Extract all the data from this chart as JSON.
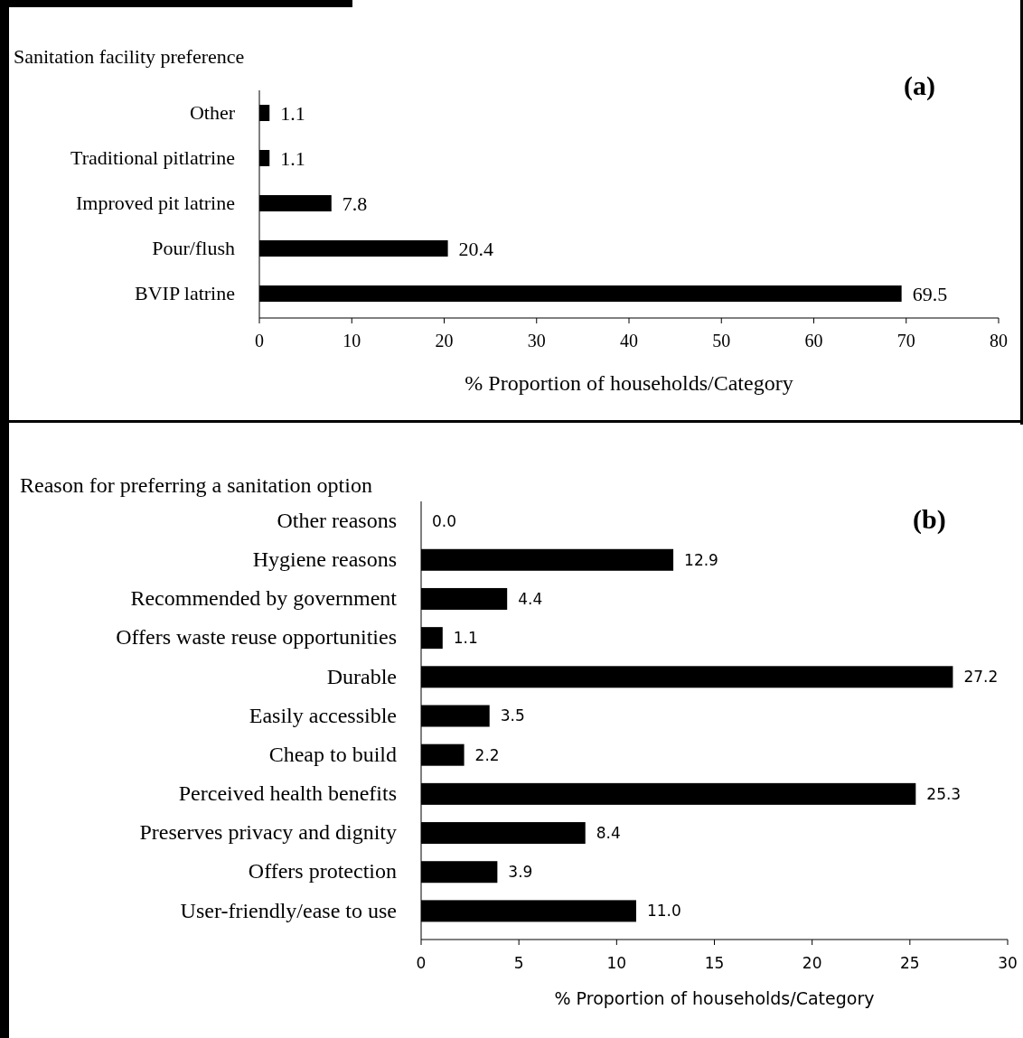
{
  "chart_data": [
    {
      "type": "bar",
      "orientation": "horizontal",
      "title": "Sanitation facility preference",
      "annotations": [
        "(a)"
      ],
      "categories": [
        "Other",
        "Traditional pitlatrine",
        "Improved pit latrine",
        "Pour/flush",
        "BVIP latrine"
      ],
      "values": [
        1.1,
        1.1,
        7.8,
        20.4,
        69.5
      ],
      "color": "#000000",
      "data_labels": true,
      "xlim": [
        0,
        80
      ],
      "xticks": [
        0,
        10,
        20,
        30,
        40,
        50,
        60,
        70,
        80
      ],
      "xlabel": "% Proportion of households/Category"
    },
    {
      "type": "bar",
      "orientation": "horizontal",
      "title": "Reason for preferring a sanitation option",
      "annotations": [
        "(b)"
      ],
      "categories": [
        "Other reasons",
        "Hygiene reasons",
        "Recommended by government",
        "Offers waste reuse opportunities",
        "Durable",
        "Easily accessible",
        "Cheap to build",
        "Perceived health benefits",
        "Preserves privacy and dignity",
        "Offers protection",
        "User-friendly/ease to use"
      ],
      "values": [
        0,
        12.9,
        4.4,
        1.1,
        27.2,
        3.5,
        2.2,
        25.3,
        8.4,
        3.9,
        11.0
      ],
      "value_labels": [
        "0.0",
        "12.9",
        "4.4",
        "1.1",
        "27.2",
        "3.5",
        "2.2",
        "25.3",
        "8.4",
        "3.9",
        "11.0"
      ],
      "color": "#000000",
      "xlim": [
        0,
        30
      ],
      "xticks": [
        0,
        5,
        10,
        15,
        20,
        25,
        30
      ],
      "xlabel": "% Proportion of households/Category"
    }
  ]
}
